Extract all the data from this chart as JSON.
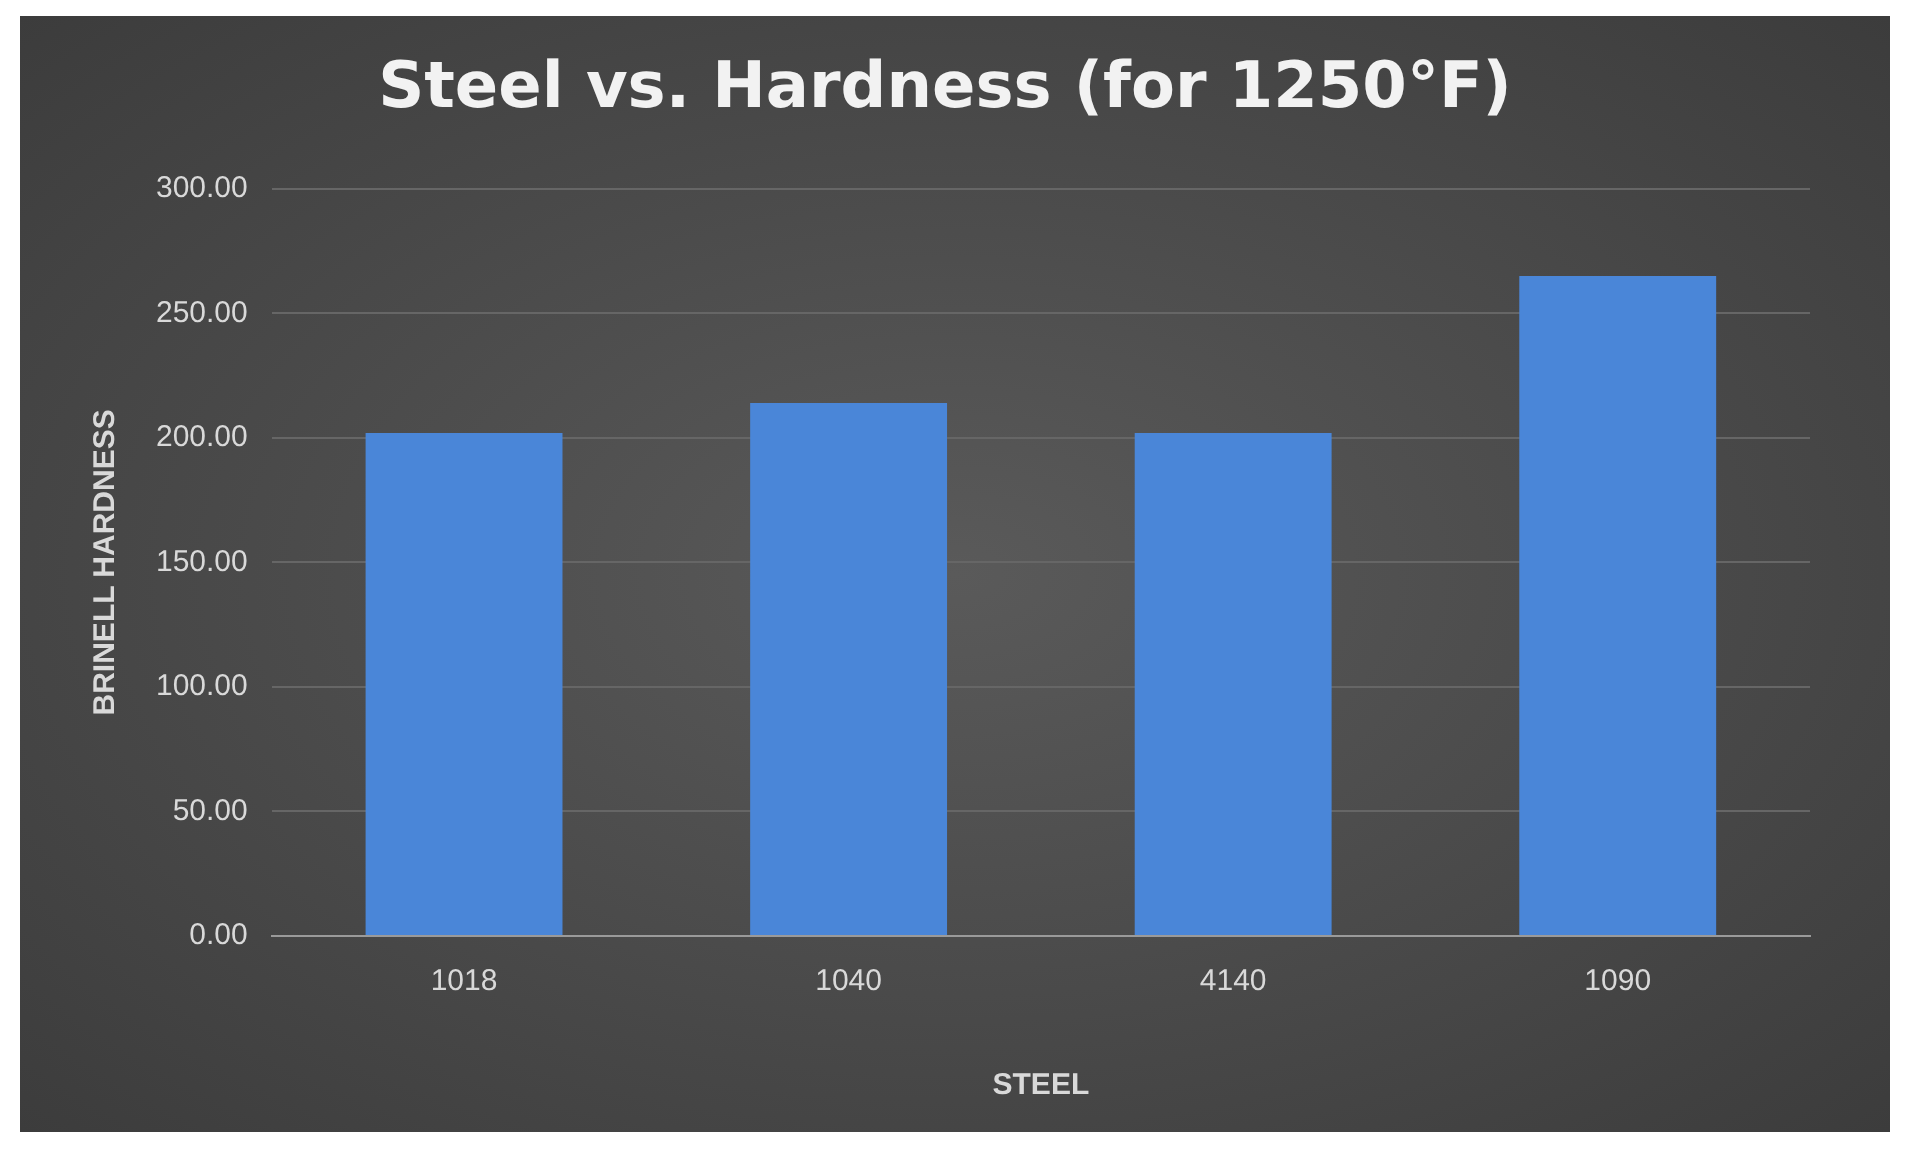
{
  "chart_data": {
    "type": "bar",
    "title": "Steel vs. Hardness (for 1250°F)",
    "xlabel": "STEEL",
    "ylabel": "BRINELL HARDNESS",
    "categories": [
      "1018",
      "1040",
      "4140",
      "1090"
    ],
    "values": [
      202,
      214,
      202,
      265
    ],
    "color": "#4a86d8",
    "ylim": [
      0,
      300
    ],
    "yticks": [
      {
        "value": 0,
        "label": "0.00"
      },
      {
        "value": 50,
        "label": "50.00"
      },
      {
        "value": 100,
        "label": "100.00"
      },
      {
        "value": 150,
        "label": "150.00"
      },
      {
        "value": 200,
        "label": "200.00"
      },
      {
        "value": 250,
        "label": "250.00"
      },
      {
        "value": 300,
        "label": "300.00"
      }
    ],
    "grid": "y"
  }
}
